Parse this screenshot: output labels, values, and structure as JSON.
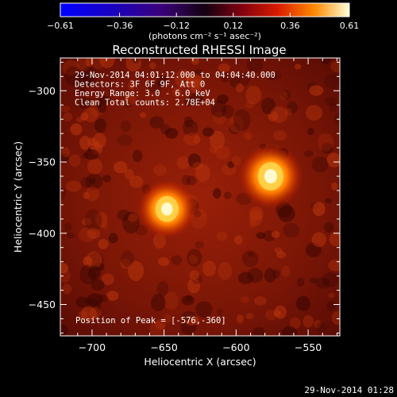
{
  "chart_data": {
    "type": "heatmap",
    "title": "Reconstructed RHESSI Image",
    "xlabel": "Heliocentric X (arcsec)",
    "ylabel": "Heliocentric Y (arcsec)",
    "xlim": [
      -722,
      -528
    ],
    "ylim": [
      -472,
      -277
    ],
    "x_ticks": [
      -700,
      -650,
      -600,
      -550
    ],
    "x_tick_labels": [
      "−700",
      "−650",
      "−600",
      "−550"
    ],
    "y_ticks": [
      -300,
      -350,
      -400,
      -450
    ],
    "y_tick_labels": [
      "−300",
      "−350",
      "−400",
      "−450"
    ],
    "colorbar": {
      "min": -0.61,
      "max": 0.61,
      "ticks": [
        -0.61,
        -0.36,
        -0.12,
        0.12,
        0.36,
        0.61
      ],
      "tick_labels": [
        "−0.61",
        "−0.36",
        "−0.12",
        "0.12",
        "0.36",
        "0.61"
      ],
      "units_label": "(photons cm⁻² s⁻¹ asec⁻²)"
    },
    "sources": [
      {
        "x": -576,
        "y": -360,
        "peak": 0.61
      },
      {
        "x": -648,
        "y": -383,
        "peak": 0.55
      }
    ],
    "info_lines": [
      "29-Nov-2014 04:01:12.000 to 04:04:40.000",
      "Detectors: 3F 6F 9F, Att 0",
      "Energy Range: 3.0 - 6.0 keV",
      "Clean     Total counts: 2.78E+04"
    ],
    "peak_text": "Position of Peak = [-576,-360]"
  },
  "footer_timestamp": "29-Nov-2014 01:28"
}
